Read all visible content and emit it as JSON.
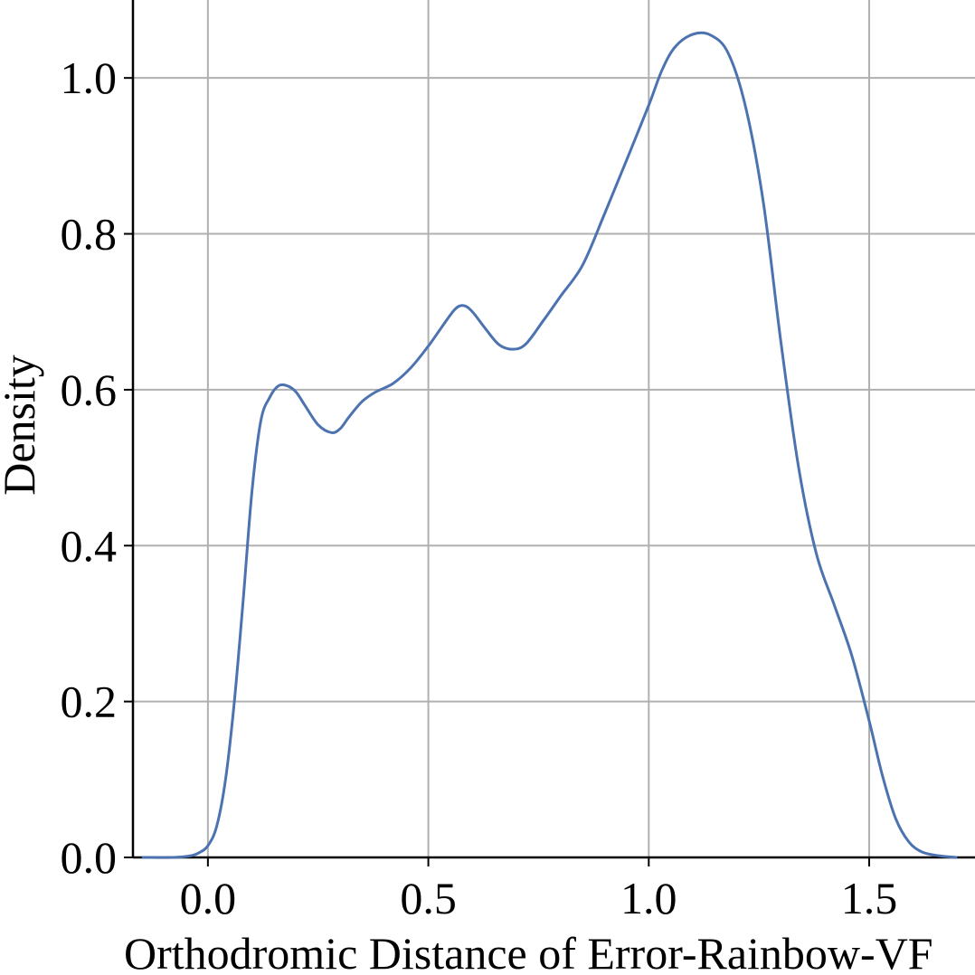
{
  "chart_data": {
    "type": "line",
    "title": "",
    "xlabel": "Orthodromic Distance of Error-Rainbow-VF",
    "ylabel": "Density",
    "xlim": [
      -0.17,
      1.74
    ],
    "ylim": [
      0.0,
      1.1
    ],
    "xticks": [
      0.0,
      0.5,
      1.0,
      1.5
    ],
    "xtick_labels": [
      "0.0",
      "0.5",
      "1.0",
      "1.5"
    ],
    "yticks": [
      0.0,
      0.2,
      0.4,
      0.6,
      0.8,
      1.0
    ],
    "ytick_labels": [
      "0.0",
      "0.2",
      "0.4",
      "0.6",
      "0.8",
      "1.0"
    ],
    "grid": true,
    "line_color": "#4C72B0",
    "series": [
      {
        "x": [
          -0.15,
          -0.08,
          -0.04,
          -0.02,
          0.0,
          0.02,
          0.04,
          0.06,
          0.08,
          0.1,
          0.12,
          0.14,
          0.16,
          0.18,
          0.2,
          0.22,
          0.25,
          0.28,
          0.3,
          0.32,
          0.35,
          0.38,
          0.42,
          0.46,
          0.5,
          0.53,
          0.56,
          0.58,
          0.6,
          0.63,
          0.66,
          0.69,
          0.72,
          0.76,
          0.8,
          0.85,
          0.9,
          0.95,
          1.0,
          1.03,
          1.06,
          1.1,
          1.14,
          1.18,
          1.22,
          1.26,
          1.3,
          1.34,
          1.38,
          1.42,
          1.46,
          1.5,
          1.53,
          1.56,
          1.59,
          1.62,
          1.66,
          1.7
        ],
        "y": [
          0.0,
          0.0,
          0.002,
          0.006,
          0.015,
          0.04,
          0.1,
          0.2,
          0.33,
          0.47,
          0.56,
          0.59,
          0.605,
          0.605,
          0.597,
          0.58,
          0.555,
          0.545,
          0.55,
          0.565,
          0.585,
          0.597,
          0.608,
          0.628,
          0.656,
          0.68,
          0.703,
          0.708,
          0.7,
          0.678,
          0.658,
          0.652,
          0.658,
          0.688,
          0.72,
          0.76,
          0.826,
          0.895,
          0.965,
          1.01,
          1.04,
          1.056,
          1.055,
          1.032,
          0.962,
          0.84,
          0.66,
          0.5,
          0.39,
          0.325,
          0.26,
          0.175,
          0.105,
          0.05,
          0.02,
          0.007,
          0.002,
          0.0
        ]
      }
    ]
  }
}
